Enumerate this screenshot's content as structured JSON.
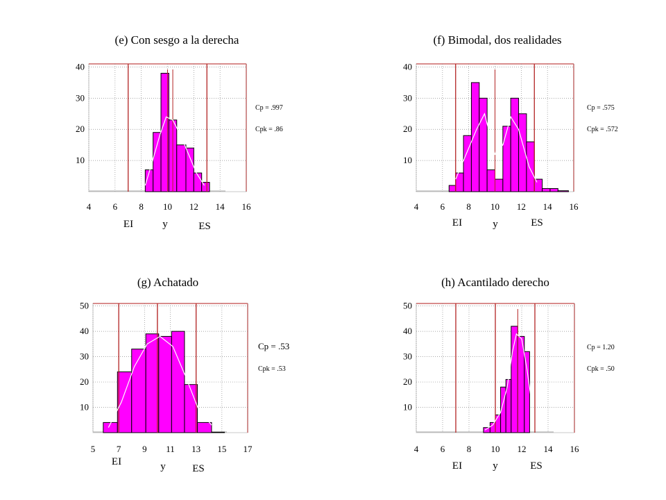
{
  "colors": {
    "bar": "#ff00ff",
    "bar_stroke": "#000000",
    "spec_line": "#b22222",
    "curve": "#ffffff",
    "grid": "#888888",
    "frame": "#cc6666"
  },
  "chart_data": [
    {
      "type": "bar",
      "title": "(e) Con sesgo a la derecha",
      "xticks": [
        "4",
        "6",
        "8",
        "10",
        "12",
        "14",
        "16"
      ],
      "yticks": [
        "10",
        "20",
        "30",
        "40"
      ],
      "xlim": [
        4,
        16
      ],
      "ylim": [
        0,
        41
      ],
      "bins": [
        [
          8.3,
          8.9,
          7
        ],
        [
          8.9,
          9.5,
          19
        ],
        [
          9.5,
          10.1,
          38
        ],
        [
          10.1,
          10.7,
          23
        ],
        [
          10.7,
          11.4,
          15
        ],
        [
          11.4,
          12.0,
          14
        ],
        [
          12.0,
          12.6,
          6
        ],
        [
          12.6,
          13.2,
          3
        ]
      ],
      "spec_lines": [
        7,
        13
      ],
      "center_lines": [
        10,
        10.4
      ],
      "curve": [
        [
          8.3,
          2
        ],
        [
          8.8,
          9
        ],
        [
          9.4,
          18
        ],
        [
          9.9,
          24
        ],
        [
          10.4,
          23
        ],
        [
          11.0,
          18
        ],
        [
          11.6,
          12
        ],
        [
          12.2,
          6
        ],
        [
          12.8,
          2
        ]
      ],
      "labels": {
        "ei": "EI",
        "y": "y",
        "es": "ES"
      },
      "cp": "Cp = .997",
      "cpk": "Cpk = .86"
    },
    {
      "type": "bar",
      "title": "(f) Bimodal, dos realidades",
      "xticks": [
        "4",
        "6",
        "8",
        "10",
        "12",
        "14",
        "16"
      ],
      "yticks": [
        "10",
        "20",
        "30",
        "40"
      ],
      "xlim": [
        4,
        16
      ],
      "ylim": [
        0,
        41
      ],
      "bins": [
        [
          6.5,
          7.0,
          2
        ],
        [
          7.0,
          7.6,
          6
        ],
        [
          7.6,
          8.2,
          18
        ],
        [
          8.2,
          8.8,
          35
        ],
        [
          8.8,
          9.4,
          30
        ],
        [
          9.4,
          10.0,
          7
        ],
        [
          10.0,
          10.6,
          4
        ],
        [
          10.6,
          11.2,
          21
        ],
        [
          11.2,
          11.8,
          30
        ],
        [
          11.8,
          12.4,
          25
        ],
        [
          12.4,
          13.0,
          16
        ],
        [
          13.0,
          13.6,
          4
        ],
        [
          13.6,
          14.2,
          1
        ],
        [
          14.2,
          14.8,
          1
        ],
        [
          14.8,
          15.6,
          0.3
        ]
      ],
      "spec_lines": [
        7,
        13
      ],
      "center_lines": [
        10
      ],
      "curve": [
        [
          7.0,
          4
        ],
        [
          7.8,
          12
        ],
        [
          8.6,
          20
        ],
        [
          9.2,
          25
        ],
        [
          10.0,
          12
        ],
        [
          10.6,
          15
        ],
        [
          11.2,
          24
        ],
        [
          11.8,
          20
        ],
        [
          12.6,
          8
        ],
        [
          13.2,
          3
        ]
      ],
      "labels": {
        "ei": "EI",
        "y": "y",
        "es": "ES"
      },
      "cp": "Cp = .575",
      "cpk": "Cpk = .572"
    },
    {
      "type": "bar",
      "title": "(g) Achatado",
      "xticks": [
        "5",
        "7",
        "9",
        "11",
        "13",
        "15",
        "17"
      ],
      "yticks": [
        "10",
        "20",
        "30",
        "40",
        "50"
      ],
      "xlim": [
        5,
        17
      ],
      "ylim": [
        0,
        51
      ],
      "bins": [
        [
          5.8,
          6.9,
          4
        ],
        [
          6.9,
          8.0,
          24
        ],
        [
          8.0,
          9.1,
          33
        ],
        [
          9.1,
          10.1,
          39
        ],
        [
          10.1,
          11.1,
          38
        ],
        [
          11.1,
          12.1,
          40
        ],
        [
          12.1,
          13.1,
          19
        ],
        [
          13.1,
          14.2,
          4
        ],
        [
          14.2,
          15.2,
          0.2
        ]
      ],
      "spec_lines": [
        7,
        10,
        13
      ],
      "center_lines": [
        10
      ],
      "curve": [
        [
          6.2,
          2
        ],
        [
          7.2,
          12
        ],
        [
          8.2,
          26
        ],
        [
          9.2,
          35
        ],
        [
          10.2,
          38
        ],
        [
          11.2,
          34
        ],
        [
          12.2,
          22
        ],
        [
          13.2,
          9
        ],
        [
          14.2,
          3
        ]
      ],
      "labels": {
        "ei": "EI",
        "y": "y",
        "es": "ES"
      },
      "cp": "Cp = .53",
      "cpk": "Cpk = .53"
    },
    {
      "type": "bar",
      "title": "(h) Acantilado derecho",
      "xticks": [
        "4",
        "6",
        "8",
        "10",
        "12",
        "14",
        "16"
      ],
      "yticks": [
        "10",
        "20",
        "30",
        "40",
        "50"
      ],
      "xlim": [
        4,
        16
      ],
      "ylim": [
        0,
        51
      ],
      "bins": [
        [
          9.1,
          9.6,
          2
        ],
        [
          9.6,
          10.0,
          4
        ],
        [
          10.0,
          10.4,
          7
        ],
        [
          10.4,
          10.8,
          18
        ],
        [
          10.8,
          11.2,
          21
        ],
        [
          11.2,
          11.7,
          42
        ],
        [
          11.7,
          12.2,
          38
        ],
        [
          12.2,
          12.6,
          32
        ]
      ],
      "spec_lines": [
        7,
        10,
        13
      ],
      "center_lines": [
        11.7
      ],
      "curve": [
        [
          9.2,
          1
        ],
        [
          9.8,
          3
        ],
        [
          10.4,
          8
        ],
        [
          10.9,
          18
        ],
        [
          11.3,
          32
        ],
        [
          11.6,
          39
        ],
        [
          12.0,
          37
        ],
        [
          12.4,
          25
        ],
        [
          12.8,
          10
        ]
      ],
      "labels": {
        "ei": "EI",
        "y": "y",
        "es": "ES"
      },
      "cp": "Cp = 1.20",
      "cpk": "Cpk = .50"
    }
  ]
}
